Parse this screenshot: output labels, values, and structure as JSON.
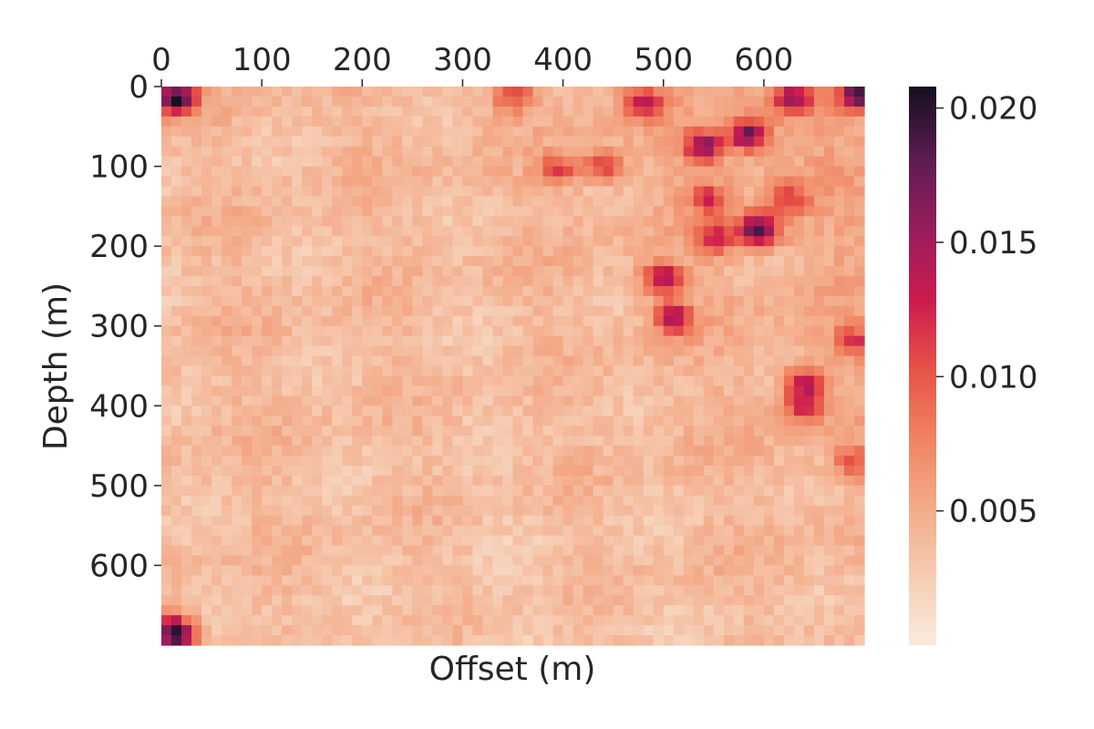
{
  "chart_data": {
    "type": "heatmap",
    "title": "",
    "xlabel": "Offset (m)",
    "ylabel": "Depth (m)",
    "x_ticks": [
      0,
      100,
      200,
      300,
      400,
      500,
      600
    ],
    "y_ticks": [
      0,
      100,
      200,
      300,
      400,
      500,
      600
    ],
    "x_range": [
      0,
      700
    ],
    "y_range": [
      0,
      700
    ],
    "x_axis_position": "top",
    "y_axis_inverted": true,
    "grid": false,
    "grid_cells": [
      70,
      56
    ],
    "colormap": "rocket_r",
    "colorbar": {
      "position": "right",
      "ticks": [
        0.005,
        0.01,
        0.015,
        0.02
      ],
      "tick_labels": [
        "0.005",
        "0.010",
        "0.015",
        "0.020"
      ],
      "range": [
        0.0,
        0.0208
      ]
    },
    "hotspots": [
      {
        "x": 15,
        "y": 15,
        "value": 0.02
      },
      {
        "x": 595,
        "y": 180,
        "value": 0.019
      },
      {
        "x": 585,
        "y": 60,
        "value": 0.017
      },
      {
        "x": 540,
        "y": 75,
        "value": 0.016
      },
      {
        "x": 500,
        "y": 240,
        "value": 0.014
      },
      {
        "x": 510,
        "y": 290,
        "value": 0.014
      },
      {
        "x": 640,
        "y": 370,
        "value": 0.013
      },
      {
        "x": 640,
        "y": 400,
        "value": 0.012
      },
      {
        "x": 630,
        "y": 15,
        "value": 0.014
      },
      {
        "x": 695,
        "y": 10,
        "value": 0.018
      },
      {
        "x": 10,
        "y": 680,
        "value": 0.016
      },
      {
        "x": 20,
        "y": 695,
        "value": 0.012
      },
      {
        "x": 550,
        "y": 190,
        "value": 0.012
      },
      {
        "x": 545,
        "y": 140,
        "value": 0.011
      },
      {
        "x": 440,
        "y": 100,
        "value": 0.011
      },
      {
        "x": 395,
        "y": 105,
        "value": 0.011
      },
      {
        "x": 480,
        "y": 20,
        "value": 0.012
      },
      {
        "x": 350,
        "y": 10,
        "value": 0.011
      },
      {
        "x": 690,
        "y": 320,
        "value": 0.011
      },
      {
        "x": 690,
        "y": 470,
        "value": 0.01
      },
      {
        "x": 625,
        "y": 140,
        "value": 0.01
      }
    ]
  }
}
